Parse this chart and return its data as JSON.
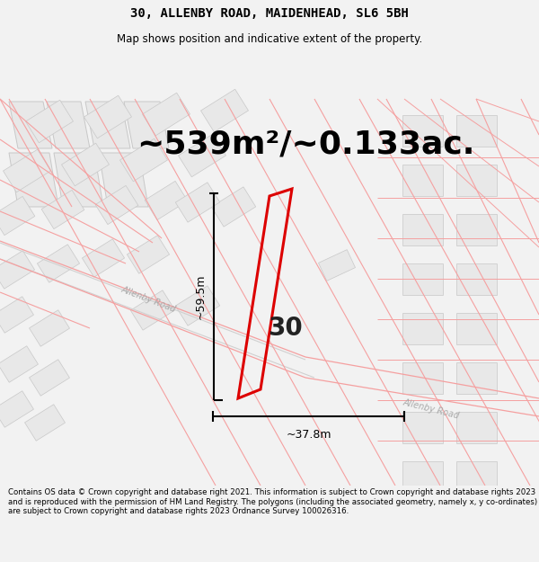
{
  "title": "30, ALLENBY ROAD, MAIDENHEAD, SL6 5BH",
  "subtitle": "Map shows position and indicative extent of the property.",
  "area_text": "~539m²/~0.133ac.",
  "dim_vertical": "~59.5m",
  "dim_horizontal": "~37.8m",
  "label_number": "30",
  "footer": "Contains OS data © Crown copyright and database right 2021. This information is subject to Crown copyright and database rights 2023 and is reproduced with the permission of HM Land Registry. The polygons (including the associated geometry, namely x, y co-ordinates) are subject to Crown copyright and database rights 2023 Ordnance Survey 100026316.",
  "bg_color": "#f2f2f2",
  "map_bg": "#ffffff",
  "road_color": "#f5a0a0",
  "road_color2": "#d0d0d0",
  "highlight_color": "#dd0000",
  "block_color": "#e8e8e8",
  "block_edge_color": "#c8c8c8",
  "title_fontsize": 10,
  "subtitle_fontsize": 8.5,
  "area_fontsize": 26,
  "label_fontsize": 20,
  "dim_fontsize": 9
}
